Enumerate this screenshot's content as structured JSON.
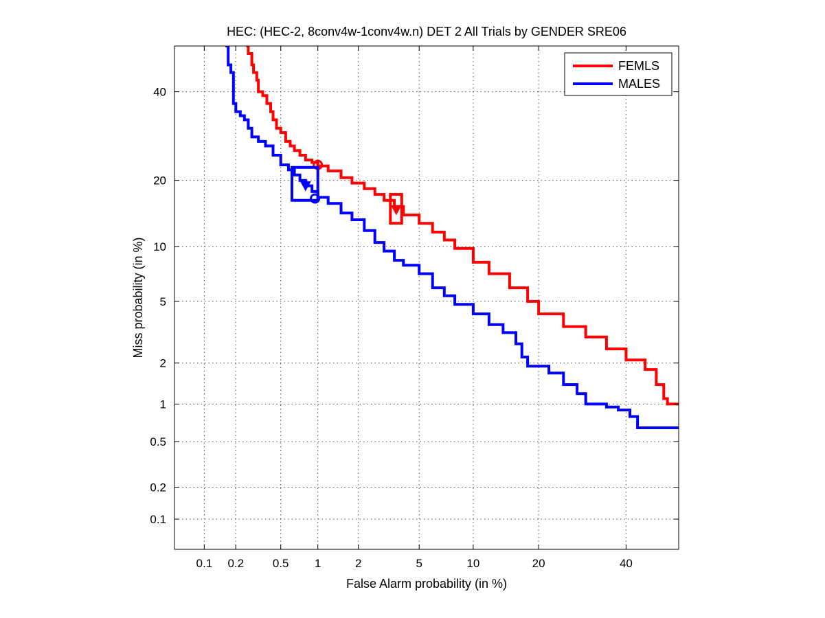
{
  "chart_data": {
    "type": "line",
    "title": "HEC: (HEC-2, 8conv4w-1conv4w.n) DET 2 All Trials by GENDER SRE06",
    "xlabel": "False Alarm probability (in %)",
    "ylabel": "Miss probability (in %)",
    "x_scale": "probit",
    "y_scale": "probit",
    "xlim": [
      0.05,
      54
    ],
    "ylim": [
      0.05,
      52
    ],
    "x_ticks": [
      0.1,
      0.2,
      0.5,
      1,
      2,
      5,
      10,
      20,
      40
    ],
    "x_tick_labels": [
      "0.1",
      "0.2",
      "0.5",
      "1",
      "2",
      "5",
      "10",
      "20",
      "40"
    ],
    "y_ticks": [
      0.1,
      0.2,
      0.5,
      1,
      2,
      5,
      10,
      20,
      40
    ],
    "y_tick_labels": [
      "0.1",
      "0.2",
      "0.5",
      "1",
      "2",
      "5",
      "10",
      "20",
      "40"
    ],
    "grid": true,
    "legend_position": "top-right",
    "series": [
      {
        "name": "FEMLS",
        "color": "#ff0000",
        "points": [
          [
            0.25,
            52
          ],
          [
            0.26,
            50
          ],
          [
            0.28,
            47
          ],
          [
            0.29,
            45
          ],
          [
            0.31,
            43
          ],
          [
            0.32,
            40
          ],
          [
            0.35,
            39
          ],
          [
            0.38,
            37
          ],
          [
            0.41,
            35
          ],
          [
            0.43,
            33
          ],
          [
            0.46,
            31
          ],
          [
            0.5,
            30
          ],
          [
            0.55,
            28
          ],
          [
            0.6,
            27
          ],
          [
            0.65,
            26
          ],
          [
            0.72,
            25
          ],
          [
            0.8,
            24
          ],
          [
            0.9,
            23.5
          ],
          [
            1.0,
            22.8
          ],
          [
            1.2,
            21.8
          ],
          [
            1.5,
            20.5
          ],
          [
            1.8,
            19.5
          ],
          [
            2.2,
            18.5
          ],
          [
            2.6,
            17.5
          ],
          [
            3.0,
            16.5
          ],
          [
            3.5,
            15.5
          ],
          [
            4.0,
            14.2
          ],
          [
            5.0,
            13.0
          ],
          [
            6.0,
            11.8
          ],
          [
            7.0,
            10.8
          ],
          [
            8.0,
            9.8
          ],
          [
            10.0,
            8.3
          ],
          [
            12.0,
            7.2
          ],
          [
            15.0,
            6.0
          ],
          [
            18.0,
            5.0
          ],
          [
            20.0,
            4.2
          ],
          [
            25.0,
            3.5
          ],
          [
            30.0,
            3.0
          ],
          [
            35.0,
            2.5
          ],
          [
            40.0,
            2.1
          ],
          [
            45.0,
            1.8
          ],
          [
            48.0,
            1.4
          ],
          [
            50.0,
            1.1
          ],
          [
            51.0,
            1.0
          ],
          [
            54.0,
            1.0
          ]
        ]
      },
      {
        "name": "MALES",
        "color": "#0000ff",
        "points": [
          [
            0.16,
            52
          ],
          [
            0.17,
            47
          ],
          [
            0.18,
            45
          ],
          [
            0.19,
            40
          ],
          [
            0.19,
            37
          ],
          [
            0.2,
            35
          ],
          [
            0.22,
            34
          ],
          [
            0.24,
            33
          ],
          [
            0.26,
            31
          ],
          [
            0.28,
            29
          ],
          [
            0.32,
            28
          ],
          [
            0.37,
            27
          ],
          [
            0.43,
            25
          ],
          [
            0.5,
            23
          ],
          [
            0.58,
            22
          ],
          [
            0.65,
            21
          ],
          [
            0.72,
            20
          ],
          [
            0.8,
            19
          ],
          [
            0.9,
            18
          ],
          [
            1.0,
            17
          ],
          [
            1.2,
            16
          ],
          [
            1.5,
            14.5
          ],
          [
            1.8,
            13.5
          ],
          [
            2.2,
            12
          ],
          [
            2.6,
            10.5
          ],
          [
            3.0,
            9.5
          ],
          [
            3.5,
            8.5
          ],
          [
            4.0,
            8.0
          ],
          [
            5.0,
            7.2
          ],
          [
            6.0,
            6.0
          ],
          [
            7.0,
            5.4
          ],
          [
            8.0,
            4.8
          ],
          [
            10.0,
            4.2
          ],
          [
            12.0,
            3.6
          ],
          [
            14.0,
            3.2
          ],
          [
            16.0,
            2.7
          ],
          [
            17.0,
            2.2
          ],
          [
            18.0,
            1.9
          ],
          [
            22.0,
            1.7
          ],
          [
            25.0,
            1.4
          ],
          [
            28.0,
            1.2
          ],
          [
            30.0,
            1.0
          ],
          [
            35.0,
            0.95
          ],
          [
            38.0,
            0.9
          ],
          [
            41.0,
            0.8
          ],
          [
            43.0,
            0.65
          ],
          [
            54.0,
            0.65
          ]
        ]
      }
    ],
    "markers": [
      {
        "series": "FEMLS",
        "kind": "circle",
        "x": 1.0,
        "y": 23.0
      },
      {
        "series": "FEMLS",
        "kind": "triangle",
        "x": 3.6,
        "y": 15.0
      },
      {
        "series": "FEMLS",
        "kind": "box",
        "x0": 3.3,
        "x1": 3.9,
        "y0": 13.0,
        "y1": 17.5
      },
      {
        "series": "MALES",
        "kind": "circle",
        "x": 0.95,
        "y": 16.8
      },
      {
        "series": "MALES",
        "kind": "triangle",
        "x": 0.8,
        "y": 19.0
      },
      {
        "series": "MALES",
        "kind": "box",
        "x0": 0.62,
        "x1": 1.0,
        "y0": 16.5,
        "y1": 22.5
      }
    ]
  }
}
